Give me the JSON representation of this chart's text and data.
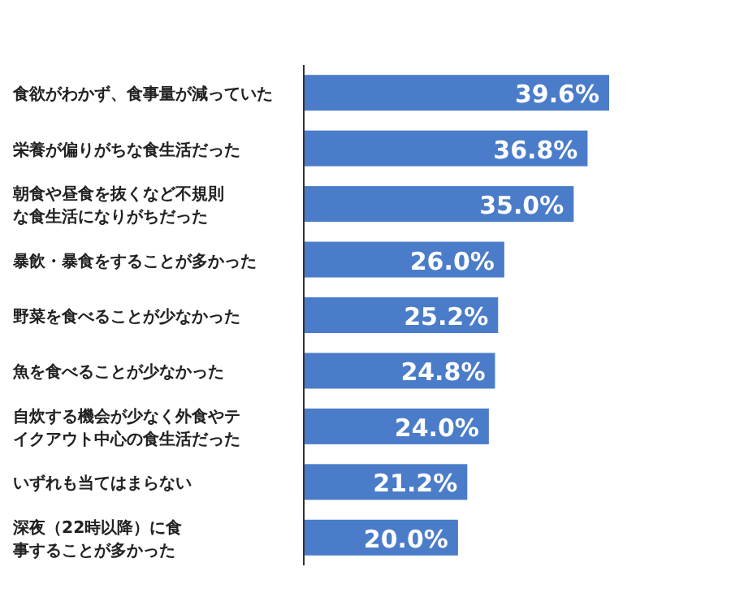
{
  "chart_data": {
    "type": "bar",
    "orientation": "horizontal",
    "data_labels": true,
    "categories": [
      "食欲がわかず、食事量が減っていた",
      "栄養が偏りがちな食生活だった",
      "朝食や昼食を抜くなど不規則な食生活になりがちだった",
      "暴飲・暴食をすることが多かった",
      "野菜を食べることが少なかった",
      "魚を食べることが少なかった",
      "自炊する機会が少なく外食やテイクアウト中心の食生活だった",
      "いずれも当てはまらない",
      "深夜（22時以降）に食事することが多かった"
    ],
    "values": [
      39.6,
      36.8,
      35.0,
      26.0,
      25.2,
      24.8,
      24.0,
      21.2,
      20.0
    ],
    "value_labels": [
      "39.6%",
      "36.8%",
      "35.0%",
      "26.0%",
      "25.2%",
      "24.8%",
      "24.0%",
      "21.2%",
      "20.0%"
    ],
    "color": "#4a7cc9"
  }
}
